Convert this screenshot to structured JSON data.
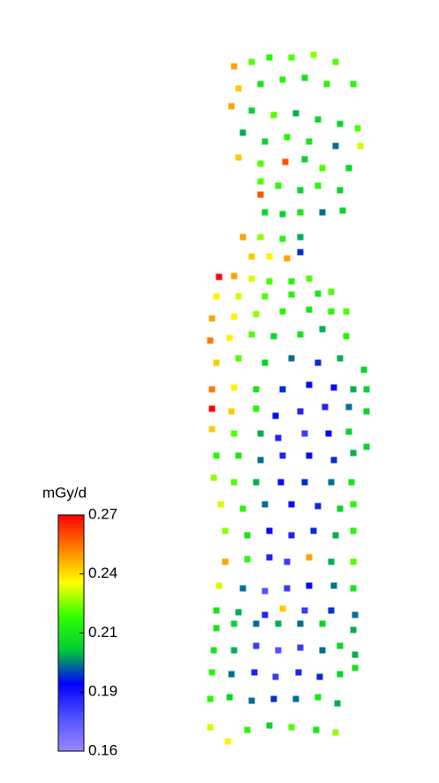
{
  "chart_data": {
    "type": "scatter",
    "colorbar_label": "mGy/d",
    "clim": [
      0.16,
      0.27
    ],
    "cticks": [
      0.16,
      {
        "value": 0.1875,
        "label": "0.19"
      },
      {
        "value": 0.215,
        "label": "0.21"
      },
      {
        "value": 0.2425,
        "label": "0.24"
      },
      0.27
    ],
    "colormap": [
      "#9a88ff",
      "#5050ff",
      "#0000ff",
      "#00cc33",
      "#33ff00",
      "#ffff00",
      "#ff8000",
      "#ff0000"
    ],
    "xlim": [
      220,
      420
    ],
    "ylim": [
      0,
      800
    ],
    "x": [
      265,
      285,
      305,
      330,
      355,
      380,
      400,
      270,
      295,
      320,
      345,
      370,
      262,
      285,
      310,
      335,
      360,
      385,
      405,
      275,
      300,
      325,
      350,
      380,
      408,
      270,
      295,
      323,
      345,
      365,
      395,
      295,
      315,
      340,
      360,
      385,
      295,
      300,
      320,
      340,
      365,
      388,
      275,
      295,
      320,
      340,
      285,
      305,
      325,
      340,
      248,
      265,
      285,
      305,
      330,
      350,
      245,
      270,
      300,
      330,
      360,
      375,
      240,
      265,
      290,
      320,
      350,
      375,
      392,
      238,
      260,
      285,
      310,
      340,
      365,
      392,
      245,
      270,
      300,
      330,
      360,
      385,
      412,
      240,
      265,
      290,
      320,
      350,
      378,
      400,
      415,
      240,
      262,
      290,
      312,
      340,
      368,
      395,
      415,
      240,
      265,
      295,
      315,
      345,
      372,
      395,
      245,
      270,
      295,
      320,
      350,
      378,
      400,
      415,
      242,
      265,
      290,
      318,
      345,
      375,
      398,
      250,
      275,
      300,
      330,
      360,
      385,
      400,
      255,
      280,
      305,
      330,
      355,
      380,
      400,
      255,
      280,
      305,
      325,
      350,
      375,
      400,
      248,
      275,
      300,
      325,
      350,
      378,
      400,
      245,
      270,
      300,
      320,
      345,
      375,
      402,
      245,
      265,
      290,
      315,
      340,
      365,
      400,
      242,
      265,
      290,
      315,
      340,
      365,
      385,
      402,
      240,
      262,
      288,
      312,
      338,
      362,
      385,
      402,
      238,
      260,
      285,
      310,
      335,
      360,
      382,
      238,
      258,
      280,
      305,
      330,
      358,
      380
    ],
    "y": [
      775,
      780,
      785,
      785,
      788,
      780,
      755,
      750,
      755,
      760,
      762,
      755,
      730,
      725,
      720,
      722,
      715,
      710,
      705,
      700,
      690,
      695,
      690,
      685,
      685,
      672,
      665,
      667,
      670,
      660,
      660,
      645,
      640,
      635,
      640,
      635,
      630,
      610,
      608,
      610,
      610,
      612,
      582,
      582,
      580,
      582,
      560,
      560,
      558,
      565,
      537,
      538,
      535,
      532,
      532,
      535,
      515,
      515,
      515,
      517,
      518,
      520,
      490,
      492,
      495,
      498,
      500,
      498,
      498,
      465,
      468,
      472,
      470,
      472,
      478,
      470,
      440,
      445,
      440,
      445,
      440,
      445,
      432,
      410,
      412,
      410,
      410,
      415,
      412,
      410,
      410,
      388,
      385,
      388,
      380,
      385,
      390,
      390,
      385,
      365,
      360,
      360,
      355,
      360,
      360,
      362,
      335,
      335,
      330,
      335,
      335,
      330,
      338,
      345,
      310,
      305,
      305,
      305,
      305,
      305,
      305,
      280,
      275,
      280,
      280,
      278,
      275,
      280,
      250,
      245,
      250,
      245,
      250,
      245,
      250,
      215,
      218,
      220,
      215,
      220,
      215,
      215,
      188,
      185,
      182,
      185,
      188,
      188,
      185,
      160,
      158,
      155,
      162,
      160,
      160,
      155,
      140,
      145,
      145,
      145,
      145,
      145,
      138,
      115,
      115,
      120,
      115,
      118,
      115,
      120,
      110,
      90,
      88,
      90,
      85,
      90,
      85,
      88,
      95,
      60,
      62,
      58,
      60,
      60,
      62,
      55,
      28,
      12,
      25,
      30,
      28,
      25,
      22
    ],
    "values": [
      0.25,
      0.225,
      0.22,
      0.225,
      0.23,
      0.225,
      0.22,
      0.245,
      0.215,
      0.22,
      0.215,
      0.22,
      0.25,
      0.21,
      0.225,
      0.205,
      0.21,
      0.21,
      0.225,
      0.205,
      0.21,
      0.22,
      0.215,
      0.2,
      0.235,
      0.245,
      0.225,
      0.26,
      0.21,
      0.225,
      0.21,
      0.225,
      0.22,
      0.21,
      0.22,
      0.21,
      0.26,
      0.21,
      0.21,
      0.215,
      0.2,
      0.21,
      0.25,
      0.23,
      0.22,
      0.205,
      0.245,
      0.24,
      0.25,
      0.195,
      0.27,
      0.25,
      0.235,
      0.225,
      0.22,
      0.225,
      0.24,
      0.235,
      0.225,
      0.22,
      0.215,
      0.225,
      0.25,
      0.24,
      0.23,
      0.22,
      0.215,
      0.22,
      0.225,
      0.255,
      0.24,
      0.225,
      0.21,
      0.215,
      0.205,
      0.22,
      0.245,
      0.225,
      0.21,
      0.2,
      0.195,
      0.205,
      0.21,
      0.255,
      0.24,
      0.215,
      0.195,
      0.19,
      0.19,
      0.205,
      0.21,
      0.27,
      0.245,
      0.22,
      0.19,
      0.185,
      0.185,
      0.2,
      0.21,
      0.245,
      0.225,
      0.205,
      0.185,
      0.18,
      0.19,
      0.21,
      0.22,
      0.215,
      0.2,
      0.185,
      0.19,
      0.195,
      0.205,
      0.21,
      0.23,
      0.225,
      0.205,
      0.19,
      0.195,
      0.2,
      0.215,
      0.235,
      0.22,
      0.2,
      0.19,
      0.195,
      0.21,
      0.22,
      0.23,
      0.215,
      0.19,
      0.185,
      0.195,
      0.205,
      0.22,
      0.25,
      0.22,
      0.185,
      0.18,
      0.25,
      0.205,
      0.225,
      0.235,
      0.2,
      0.175,
      0.18,
      0.19,
      0.2,
      0.215,
      0.215,
      0.205,
      0.185,
      0.245,
      0.18,
      0.195,
      0.2,
      0.215,
      0.21,
      0.2,
      0.205,
      0.2,
      0.21,
      0.205,
      0.215,
      0.205,
      0.18,
      0.175,
      0.18,
      0.2,
      0.21,
      0.205,
      0.22,
      0.2,
      0.185,
      0.18,
      0.185,
      0.195,
      0.21,
      0.215,
      0.22,
      0.21,
      0.2,
      0.195,
      0.2,
      0.215,
      0.205,
      0.235,
      0.24,
      0.22,
      0.21,
      0.225,
      0.215,
      0.23
    ]
  }
}
